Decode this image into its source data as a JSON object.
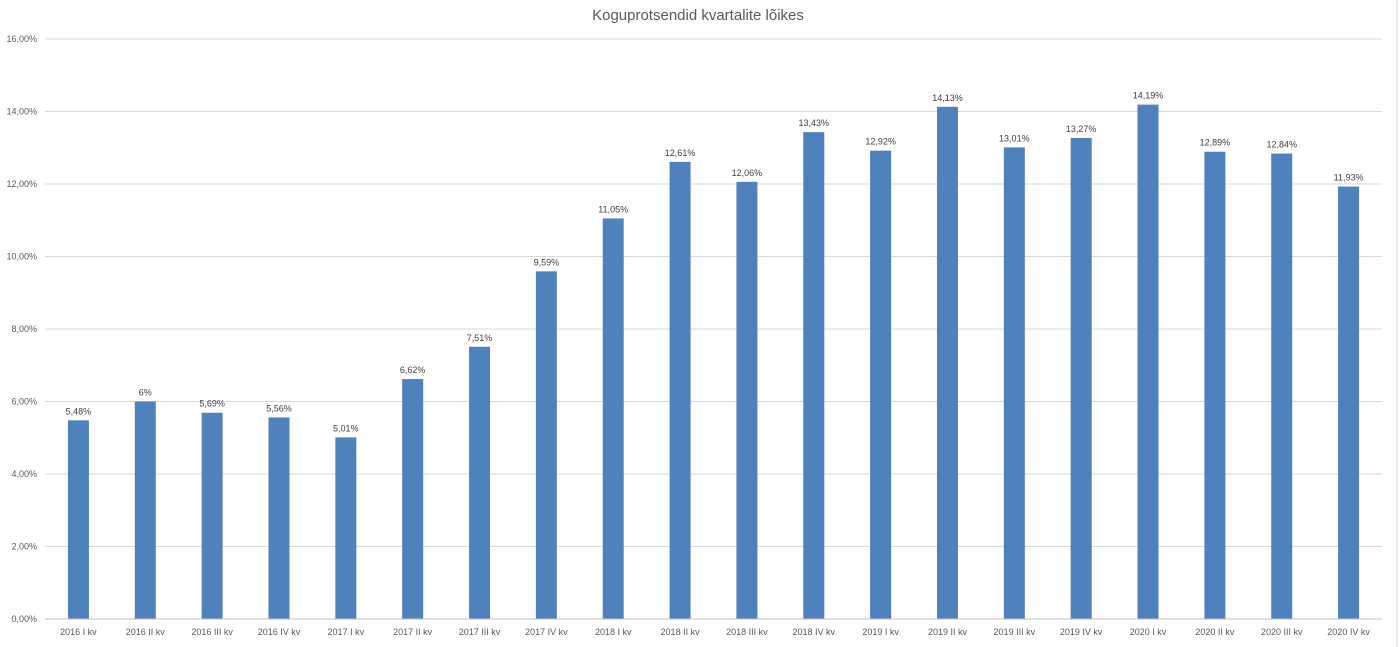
{
  "chart_data": {
    "type": "bar",
    "title": "Koguprotsendid kvartalite lõikes",
    "xlabel": "",
    "ylabel": "",
    "ylim": [
      0,
      16
    ],
    "y_ticks": [
      "0,00%",
      "2,00%",
      "4,00%",
      "6,00%",
      "8,00%",
      "10,00%",
      "12,00%",
      "14,00%",
      "16,00%"
    ],
    "grid": true,
    "legend": "none",
    "bar_color": "#4f81bd",
    "categories": [
      "2016 I kv",
      "2016 II kv",
      "2016 III kv",
      "2016 IV kv",
      "2017 I kv",
      "2017 II kv",
      "2017 III kv",
      "2017 IV kv",
      "2018 I kv",
      "2018 II kv",
      "2018 III kv",
      "2018 IV kv",
      "2019 I kv",
      "2019 II kv",
      "2019 III kv",
      "2019 IV kv",
      "2020 I kv",
      "2020 II kv",
      "2020 III kv",
      "2020 IV kv"
    ],
    "values": [
      5.48,
      6,
      5.69,
      5.56,
      5.01,
      6.62,
      7.51,
      9.59,
      11.05,
      12.61,
      12.06,
      13.43,
      12.92,
      14.13,
      13.01,
      13.27,
      14.19,
      12.89,
      12.84,
      11.93
    ],
    "data_labels": [
      "5,48%",
      "6%",
      "5,69%",
      "5,56%",
      "5,01%",
      "6,62%",
      "7,51%",
      "9,59%",
      "11,05%",
      "12,61%",
      "12,06%",
      "13,43%",
      "12,92%",
      "14,13%",
      "13,01%",
      "13,27%",
      "14,19%",
      "12,89%",
      "12,84%",
      "11,93%"
    ]
  }
}
